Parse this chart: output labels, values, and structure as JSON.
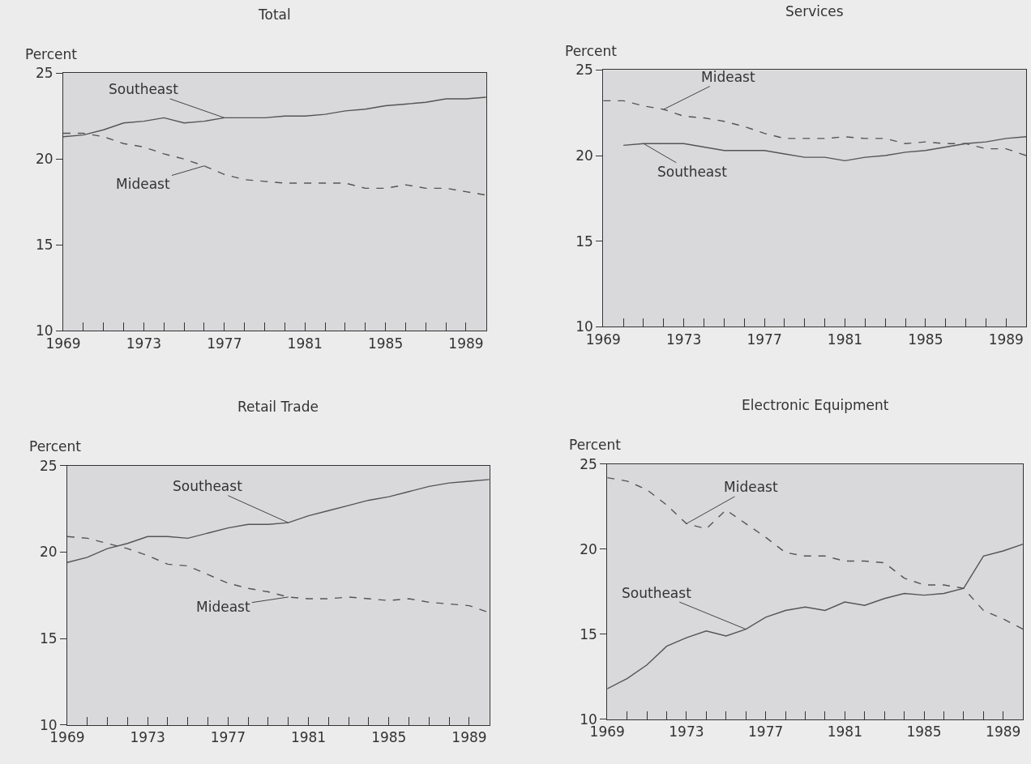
{
  "chart_data": [
    {
      "type": "line",
      "title": "Total",
      "ylabel": "Percent",
      "x": [
        1969,
        1970,
        1971,
        1972,
        1973,
        1974,
        1975,
        1976,
        1977,
        1978,
        1979,
        1980,
        1981,
        1982,
        1983,
        1984,
        1985,
        1986,
        1987,
        1988,
        1989,
        1990
      ],
      "xlim": [
        1969,
        1990
      ],
      "ylim": [
        10,
        25
      ],
      "yticks": [
        10,
        15,
        20,
        25
      ],
      "xticks": [
        1969,
        {
          "value": 1970,
          "label": null
        },
        {
          "value": 1971,
          "label": null
        },
        {
          "value": 1972,
          "label": null
        },
        1973,
        {
          "value": 1974,
          "label": null
        },
        {
          "value": 1975,
          "label": null
        },
        {
          "value": 1976,
          "label": null
        },
        1977,
        {
          "value": 1978,
          "label": null
        },
        {
          "value": 1979,
          "label": null
        },
        {
          "value": 1980,
          "label": null
        },
        1981,
        {
          "value": 1982,
          "label": null
        },
        {
          "value": 1983,
          "label": null
        },
        {
          "value": 1984,
          "label": null
        },
        1985,
        {
          "value": 1986,
          "label": null
        },
        {
          "value": 1987,
          "label": null
        },
        {
          "value": 1988,
          "label": null
        },
        1989,
        {
          "value": 1990,
          "label": null
        }
      ],
      "grid": false,
      "marker": "none",
      "series": [
        {
          "name": "Southeast",
          "color": "#555555",
          "line_style": "solid",
          "values": [
            21.3,
            21.4,
            21.7,
            22.1,
            22.2,
            22.4,
            22.1,
            22.2,
            22.4,
            22.4,
            22.4,
            22.5,
            22.5,
            22.6,
            22.8,
            22.9,
            23.1,
            23.2,
            23.3,
            23.5,
            23.5,
            23.6
          ]
        },
        {
          "name": "Mideast",
          "color": "#555555",
          "line_style": "dashed",
          "values": [
            21.5,
            21.5,
            21.3,
            20.9,
            20.7,
            20.3,
            20.0,
            19.6,
            19.1,
            18.8,
            18.7,
            18.6,
            18.6,
            18.6,
            18.6,
            18.3,
            18.3,
            18.5,
            18.3,
            18.3,
            18.1,
            17.9
          ]
        }
      ]
    },
    {
      "type": "line",
      "title": "Services",
      "ylabel": "Percent",
      "x": [
        1969,
        1970,
        1971,
        1972,
        1973,
        1974,
        1975,
        1976,
        1977,
        1978,
        1979,
        1980,
        1981,
        1982,
        1983,
        1984,
        1985,
        1986,
        1987,
        1988,
        1989,
        1990
      ],
      "xlim": [
        1969,
        1990
      ],
      "ylim": [
        10,
        25
      ],
      "yticks": [
        10,
        15,
        20,
        25
      ],
      "xticks": [
        1969,
        {
          "value": 1970,
          "label": null
        },
        {
          "value": 1971,
          "label": null
        },
        {
          "value": 1972,
          "label": null
        },
        1973,
        {
          "value": 1974,
          "label": null
        },
        {
          "value": 1975,
          "label": null
        },
        {
          "value": 1976,
          "label": null
        },
        1977,
        {
          "value": 1978,
          "label": null
        },
        {
          "value": 1979,
          "label": null
        },
        {
          "value": 1980,
          "label": null
        },
        1981,
        {
          "value": 1982,
          "label": null
        },
        {
          "value": 1983,
          "label": null
        },
        {
          "value": 1984,
          "label": null
        },
        1985,
        {
          "value": 1986,
          "label": null
        },
        {
          "value": 1987,
          "label": null
        },
        {
          "value": 1988,
          "label": null
        },
        1989,
        {
          "value": 1990,
          "label": null
        }
      ],
      "grid": false,
      "marker": "none",
      "series": [
        {
          "name": "Mideast",
          "color": "#555555",
          "line_style": "dashed",
          "values": [
            23.2,
            23.2,
            22.9,
            22.7,
            22.3,
            22.2,
            22.0,
            21.7,
            21.3,
            21.0,
            21.0,
            21.0,
            21.1,
            21.0,
            21.0,
            20.7,
            20.8,
            20.7,
            20.7,
            20.4,
            20.4,
            20.0
          ]
        },
        {
          "name": "Southeast",
          "color": "#555555",
          "line_style": "solid",
          "values": [
            null,
            20.6,
            20.7,
            20.7,
            20.7,
            20.5,
            20.3,
            20.3,
            20.3,
            20.1,
            19.9,
            19.9,
            19.7,
            19.9,
            20.0,
            20.2,
            20.3,
            20.5,
            20.7,
            20.8,
            21.0,
            21.1
          ]
        }
      ]
    },
    {
      "type": "line",
      "title": "Retail Trade",
      "ylabel": "Percent",
      "x": [
        1969,
        1970,
        1971,
        1972,
        1973,
        1974,
        1975,
        1976,
        1977,
        1978,
        1979,
        1980,
        1981,
        1982,
        1983,
        1984,
        1985,
        1986,
        1987,
        1988,
        1989,
        1990
      ],
      "xlim": [
        1969,
        1990
      ],
      "ylim": [
        10,
        25
      ],
      "yticks": [
        10,
        15,
        20,
        25
      ],
      "xticks": [
        1969,
        {
          "value": 1970,
          "label": null
        },
        {
          "value": 1971,
          "label": null
        },
        {
          "value": 1972,
          "label": null
        },
        1973,
        {
          "value": 1974,
          "label": null
        },
        {
          "value": 1975,
          "label": null
        },
        {
          "value": 1976,
          "label": null
        },
        1977,
        {
          "value": 1978,
          "label": null
        },
        {
          "value": 1979,
          "label": null
        },
        {
          "value": 1980,
          "label": null
        },
        1981,
        {
          "value": 1982,
          "label": null
        },
        {
          "value": 1983,
          "label": null
        },
        {
          "value": 1984,
          "label": null
        },
        1985,
        {
          "value": 1986,
          "label": null
        },
        {
          "value": 1987,
          "label": null
        },
        {
          "value": 1988,
          "label": null
        },
        1989,
        {
          "value": 1990,
          "label": null
        }
      ],
      "grid": false,
      "marker": "none",
      "series": [
        {
          "name": "Southeast",
          "color": "#555555",
          "line_style": "solid",
          "values": [
            19.4,
            19.7,
            20.2,
            20.5,
            20.9,
            20.9,
            20.8,
            21.1,
            21.4,
            21.6,
            21.6,
            21.7,
            22.1,
            22.4,
            22.7,
            23.0,
            23.2,
            23.5,
            23.8,
            24.0,
            24.1,
            24.2
          ]
        },
        {
          "name": "Mideast",
          "color": "#555555",
          "line_style": "dashed",
          "values": [
            20.9,
            20.8,
            20.5,
            20.2,
            19.8,
            19.3,
            19.2,
            18.7,
            18.2,
            17.9,
            17.7,
            17.4,
            17.3,
            17.3,
            17.4,
            17.3,
            17.2,
            17.3,
            17.1,
            17.0,
            16.9,
            16.5
          ]
        }
      ]
    },
    {
      "type": "line",
      "title": "Electronic Equipment",
      "ylabel": "Percent",
      "x": [
        1969,
        1970,
        1971,
        1972,
        1973,
        1974,
        1975,
        1976,
        1977,
        1978,
        1979,
        1980,
        1981,
        1982,
        1983,
        1984,
        1985,
        1986,
        1987,
        1988,
        1989,
        1990
      ],
      "xlim": [
        1969,
        1990
      ],
      "ylim": [
        10,
        25
      ],
      "yticks": [
        10,
        15,
        20,
        25
      ],
      "xticks": [
        1969,
        {
          "value": 1970,
          "label": null
        },
        {
          "value": 1971,
          "label": null
        },
        {
          "value": 1972,
          "label": null
        },
        1973,
        {
          "value": 1974,
          "label": null
        },
        {
          "value": 1975,
          "label": null
        },
        {
          "value": 1976,
          "label": null
        },
        1977,
        {
          "value": 1978,
          "label": null
        },
        {
          "value": 1979,
          "label": null
        },
        {
          "value": 1980,
          "label": null
        },
        1981,
        {
          "value": 1982,
          "label": null
        },
        {
          "value": 1983,
          "label": null
        },
        {
          "value": 1984,
          "label": null
        },
        1985,
        {
          "value": 1986,
          "label": null
        },
        {
          "value": 1987,
          "label": null
        },
        {
          "value": 1988,
          "label": null
        },
        1989,
        {
          "value": 1990,
          "label": null
        }
      ],
      "grid": false,
      "marker": "none",
      "series": [
        {
          "name": "Mideast",
          "color": "#555555",
          "line_style": "dashed",
          "values": [
            24.2,
            24.0,
            23.5,
            22.6,
            21.5,
            21.2,
            22.3,
            21.5,
            20.7,
            19.8,
            19.6,
            19.6,
            19.3,
            19.3,
            19.2,
            18.3,
            17.9,
            17.9,
            17.7,
            16.4,
            15.9,
            15.3
          ]
        },
        {
          "name": "Southeast",
          "color": "#555555",
          "line_style": "solid",
          "values": [
            11.8,
            12.4,
            13.2,
            14.3,
            14.8,
            15.2,
            14.9,
            15.3,
            16.0,
            16.4,
            16.6,
            16.4,
            16.9,
            16.7,
            17.1,
            17.4,
            17.3,
            17.4,
            17.7,
            19.6,
            19.9,
            20.3
          ]
        }
      ]
    }
  ]
}
